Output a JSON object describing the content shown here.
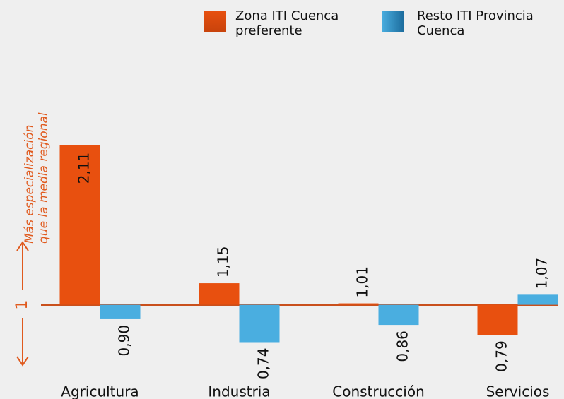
{
  "chart_data": {
    "type": "bar",
    "categories": [
      "Agricultura",
      "Industria",
      "Construcción",
      "Servicios"
    ],
    "series": [
      {
        "name": "Zona ITI Cuenca preferente",
        "color": "#e8500f",
        "values": [
          2.11,
          1.15,
          1.01,
          0.79
        ],
        "value_labels": [
          "2,11",
          "1,15",
          "1,01",
          "0,79"
        ]
      },
      {
        "name": "Resto ITI Provincia Cuenca",
        "color": "#4aaee0",
        "values": [
          0.9,
          0.74,
          0.86,
          1.07
        ],
        "value_labels": [
          "0,90",
          "0,74",
          "0,86",
          "1,07"
        ]
      }
    ],
    "ylim": [
      0.6,
      2.6
    ],
    "yticks": [
      1
    ],
    "annotations": [
      "Más especialización",
      "que la media regional"
    ]
  }
}
